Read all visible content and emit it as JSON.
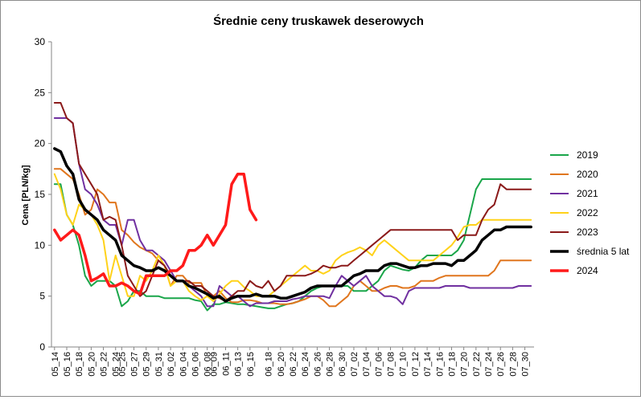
{
  "chart_data": {
    "type": "line",
    "title": "Średnie ceny truskawek deserowych",
    "ylabel": "Cena [PLN/kg]",
    "xlabel": "",
    "ylim": [
      0,
      30
    ],
    "yticks": [
      "0",
      "5",
      "10",
      "15",
      "20",
      "25",
      "30"
    ],
    "grid": false,
    "legend_position": "right",
    "x": [
      "05_14",
      "05_15",
      "05_16",
      "05_17",
      "05_18",
      "05_19",
      "05_20",
      "05_21",
      "05_22",
      "05_23",
      "05_24",
      "05_25",
      "05_26",
      "05_27",
      "05_28",
      "05_29",
      "05_30",
      "05_31",
      "06_01",
      "06_02",
      "06_03",
      "06_04",
      "06_05",
      "06_06",
      "06_07",
      "06_08",
      "06_09",
      "06_10",
      "06_11",
      "06_12",
      "06_13",
      "06_14",
      "06_15",
      "06_16",
      "06_17",
      "06_18",
      "06_19",
      "06_20",
      "06_21",
      "06_22",
      "06_23",
      "06_24",
      "06_25",
      "06_26",
      "06_27",
      "06_28",
      "06_29",
      "06_30",
      "07_01",
      "07_02",
      "07_03",
      "07_04",
      "07_05",
      "07_06",
      "07_07",
      "07_08",
      "07_09",
      "07_10",
      "07_11",
      "07_12",
      "07_13",
      "07_14",
      "07_15",
      "07_16",
      "07_17",
      "07_18",
      "07_19",
      "07_20",
      "07_21",
      "07_22",
      "07_23",
      "07_24",
      "07_25",
      "07_26",
      "07_27",
      "07_28",
      "07_29",
      "07_30",
      "07_31"
    ],
    "xticks": [
      "05_14",
      "05_16",
      "05_18",
      "05_20",
      "05_22",
      "05_24",
      "05_25",
      "05_27",
      "05_29",
      "05_31",
      "06_02",
      "06_04",
      "06_06",
      "06_08",
      "06_09",
      "06_11",
      "06_13",
      "06_15",
      "06_18",
      "06_20",
      "06_22",
      "06_24",
      "06_26",
      "06_28",
      "06_30",
      "07_02",
      "07_04",
      "07_06",
      "07_08",
      "07_10",
      "07_12",
      "07_14",
      "07_16",
      "07_18",
      "07_20",
      "07_22",
      "07_24",
      "07_26",
      "07_28",
      "07_30"
    ],
    "series": [
      {
        "name": "2019",
        "color": "#1aa64a",
        "width": 2,
        "values": [
          16,
          16,
          13,
          12,
          10,
          7,
          6,
          6.5,
          6.5,
          6.5,
          6,
          4,
          4.5,
          5.5,
          5.5,
          5,
          5,
          5,
          4.8,
          4.8,
          4.8,
          4.8,
          4.8,
          4.6,
          4.5,
          3.6,
          4.2,
          4.2,
          4.4,
          4.3,
          4.2,
          4.2,
          4.1,
          4,
          3.9,
          3.8,
          3.8,
          4,
          4.2,
          4.3,
          4.5,
          5,
          5.5,
          5.8,
          6,
          6,
          6,
          6,
          6,
          5.5,
          5.5,
          5.5,
          6,
          6.5,
          7.5,
          8,
          7.8,
          7.6,
          7.5,
          7.8,
          8.5,
          9,
          9,
          9,
          9,
          9,
          9.5,
          10.5,
          13,
          15.5,
          16.5,
          16.5,
          16.5,
          16.5,
          16.5,
          16.5,
          16.5,
          16.5,
          16.5
        ]
      },
      {
        "name": "2020",
        "color": "#e0761e",
        "width": 2,
        "values": [
          17.5,
          17.5,
          17,
          16.5,
          15,
          13,
          13.5,
          15.5,
          15,
          14.2,
          14.2,
          11.5,
          11,
          10.3,
          9.8,
          9.5,
          9.2,
          8.5,
          8,
          6,
          7,
          7,
          6.3,
          6.3,
          6.3,
          5,
          5,
          5.5,
          4.8,
          4.4,
          4.4,
          4.6,
          4.6,
          4.5,
          4.3,
          4.3,
          4.3,
          4.2,
          4.2,
          4.3,
          4.5,
          4.7,
          5,
          5,
          4.6,
          4,
          4,
          4.5,
          5,
          6,
          6.5,
          6,
          5.5,
          5.5,
          5.8,
          6,
          6,
          5.8,
          5.8,
          6,
          6.5,
          6.5,
          6.5,
          6.8,
          7,
          7,
          7,
          7,
          7,
          7,
          7,
          7,
          7.5,
          8.5,
          8.5,
          8.5,
          8.5,
          8.5,
          8.5
        ]
      },
      {
        "name": "2021",
        "color": "#7030a0",
        "width": 2,
        "values": [
          22.5,
          22.5,
          22.5,
          22,
          18,
          15.5,
          15,
          14,
          12.5,
          12,
          12,
          10,
          12.5,
          12.5,
          10.5,
          9.5,
          9.5,
          9,
          8.5,
          7.5,
          6.5,
          6.5,
          6,
          5.5,
          5,
          4,
          4,
          6,
          5.5,
          5,
          5,
          4.5,
          4,
          4.3,
          4.3,
          4.3,
          4.5,
          4.5,
          4.5,
          4.7,
          4.8,
          5,
          5,
          5,
          5,
          4.8,
          6,
          7,
          6.5,
          6,
          6.5,
          7,
          6,
          5.5,
          5,
          5,
          4.8,
          4.2,
          5.5,
          5.8,
          5.8,
          5.8,
          5.8,
          5.8,
          6,
          6,
          6,
          6,
          5.8,
          5.8,
          5.8,
          5.8,
          5.8,
          5.8,
          5.8,
          5.8,
          6,
          6,
          6
        ]
      },
      {
        "name": "2022",
        "color": "#ffd21a",
        "width": 2,
        "values": [
          17,
          15.5,
          13,
          12,
          14,
          13.5,
          13,
          12,
          10.5,
          6.5,
          9,
          7,
          5,
          5,
          7,
          6.5,
          7.5,
          9,
          8,
          6,
          6.5,
          6.5,
          5.5,
          5,
          4.6,
          5,
          4.5,
          5.2,
          6,
          6.5,
          6.5,
          5.9,
          5.5,
          5,
          5,
          5,
          5.5,
          6,
          6.5,
          7,
          7.5,
          8,
          7.5,
          7.5,
          7.2,
          7.5,
          8.5,
          9,
          9.3,
          9.5,
          9.8,
          9.5,
          9,
          10,
          10.5,
          10,
          9.5,
          9,
          8.5,
          8.5,
          8.5,
          8.5,
          8.5,
          9,
          9.5,
          10,
          10.8,
          11.8,
          12,
          12,
          12.5,
          12.5,
          12.5,
          12.5,
          12.5,
          12.5,
          12.5,
          12.5,
          12.5
        ]
      },
      {
        "name": "2023",
        "color": "#8b1a1a",
        "width": 2,
        "values": [
          24,
          24,
          22.5,
          22,
          18,
          17,
          16,
          15,
          12.5,
          12.8,
          12.5,
          10,
          7,
          6,
          5,
          5.5,
          7,
          8.5,
          8,
          7,
          6.5,
          6.5,
          6.5,
          6,
          6,
          5.5,
          5,
          4.8,
          4.5,
          5,
          5.5,
          5.5,
          6.5,
          6,
          5.8,
          6.5,
          5.5,
          6,
          7,
          7,
          7,
          7,
          7.2,
          7.5,
          8,
          7.8,
          7.8,
          8,
          8,
          8.5,
          9,
          9.5,
          10,
          10.5,
          11,
          11.5,
          11.5,
          11.5,
          11.5,
          11.5,
          11.5,
          11.5,
          11.5,
          11.5,
          11.5,
          11.5,
          10.5,
          11,
          11,
          11,
          12.5,
          13.5,
          14,
          16,
          15.5,
          15.5,
          15.5,
          15.5,
          15.5
        ]
      },
      {
        "name": "średnia 5 lat",
        "color": "#000000",
        "width": 3.5,
        "values": [
          19.5,
          19.2,
          17.8,
          17,
          14.5,
          13.5,
          13,
          12.5,
          11.5,
          11,
          10.5,
          9,
          8.5,
          8,
          7.8,
          7.5,
          7.5,
          7.8,
          7.5,
          7,
          6.5,
          6.5,
          6,
          5.8,
          5.5,
          5.2,
          4.8,
          5,
          4.5,
          4.8,
          5,
          5,
          5,
          5.2,
          5,
          5,
          5,
          4.8,
          4.8,
          5,
          5.2,
          5.4,
          5.8,
          6,
          6,
          6,
          6,
          6,
          6.5,
          7,
          7.2,
          7.5,
          7.5,
          7.5,
          8,
          8.2,
          8.2,
          8,
          7.8,
          7.8,
          8,
          8,
          8.2,
          8.2,
          8.2,
          8,
          8.5,
          8.5,
          9,
          9.5,
          10.5,
          11,
          11.5,
          11.5,
          11.8,
          11.8,
          11.8,
          11.8,
          11.8
        ]
      },
      {
        "name": "2024",
        "color": "#ff1a1a",
        "width": 3.5,
        "values": [
          11.5,
          10.5,
          11,
          11.5,
          11,
          9,
          6.5,
          6.8,
          7.2,
          6,
          6,
          6.3,
          6,
          5.5,
          5.2,
          7,
          7,
          7,
          7,
          7.5,
          7.5,
          8,
          9.5,
          9.5,
          10,
          11,
          10,
          11,
          12,
          16,
          17,
          17,
          13.5,
          12.5,
          null,
          null,
          null,
          null,
          null,
          null,
          null,
          null,
          null,
          null,
          null,
          null,
          null,
          null,
          null,
          null,
          null,
          null,
          null,
          null,
          null,
          null,
          null,
          null,
          null,
          null,
          null,
          null,
          null,
          null,
          null,
          null,
          null,
          null,
          null,
          null,
          null,
          null,
          null,
          null,
          null,
          null,
          null,
          null,
          null
        ]
      }
    ]
  }
}
